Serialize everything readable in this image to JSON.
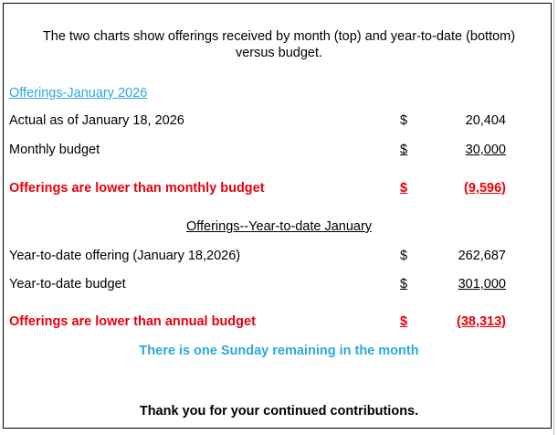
{
  "intro": [
    "The two charts show offerings received by month (top) and year-to-date (bottom)",
    "versus budget."
  ],
  "monthly": {
    "heading": "Offerings-January 2026",
    "rows": [
      [
        "Actual as of January 18, 2026",
        "$",
        "20,404"
      ],
      [
        "Monthly budget",
        "$",
        "30,000"
      ],
      [
        "Offerings are lower than monthly budget",
        "$",
        "(9,596)"
      ]
    ]
  },
  "ytd": {
    "heading": "Offerings--Year-to-date January",
    "rows": [
      [
        "Year-to-date offering (January 18,2026)",
        "$",
        "262,687"
      ],
      [
        "Year-to-date budget",
        "$",
        "301,000"
      ],
      [
        "Offerings are lower than annual budget",
        "$",
        "(38,313)"
      ]
    ]
  },
  "note": "There is one Sunday remaining in the month",
  "thanks": "Thank you for your continued contributions."
}
